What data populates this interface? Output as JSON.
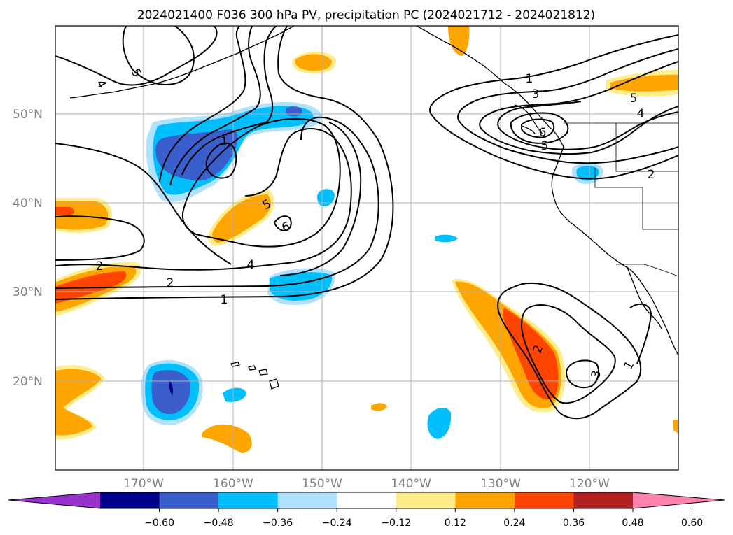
{
  "title": "2024021400 F036 300 hPa PV, precipitation PC (2024021712 - 2024021812)",
  "map": {
    "lon_labels": [
      "170°W",
      "160°W",
      "150°W",
      "140°W",
      "130°W",
      "120°W"
    ],
    "lat_labels": [
      "50°N",
      "40°N",
      "30°N",
      "20°N"
    ],
    "contour_labels": {
      "c1a": "1",
      "c1b": "1",
      "c1c": "1",
      "c1d": "1",
      "c2a": "2",
      "c2b": "2",
      "c2c": "2",
      "c2d": "2",
      "c3a": "3",
      "c3b": "3",
      "c4a": "4",
      "c4b": "4",
      "c4c": "4",
      "c5a": "5",
      "c5b": "5",
      "c5c": "5",
      "c5d": "5",
      "c6a": "6",
      "c6b": "6"
    },
    "colors": {
      "deep_purple": "#9932cc",
      "navy": "#00008b",
      "royal_blue": "#3a5fcd",
      "deep_sky": "#00bfff",
      "light_sky": "#b0e2ff",
      "white": "#ffffff",
      "light_yellow": "#ffec8b",
      "orange": "#ffa500",
      "orange_red": "#ff4500",
      "firebrick": "#b22222",
      "pink": "#ff82ab"
    }
  },
  "colorbar": {
    "ticks": [
      "−0.60",
      "−0.48",
      "−0.36",
      "−0.24",
      "−0.12",
      "0.12",
      "0.24",
      "0.36",
      "0.48",
      "0.60"
    ],
    "colors": [
      "#9932cc",
      "#00008b",
      "#3a5fcd",
      "#00bfff",
      "#b0e2ff",
      "#ffffff",
      "#ffec8b",
      "#ffa500",
      "#ff4500",
      "#b22222",
      "#ff82ab"
    ]
  }
}
